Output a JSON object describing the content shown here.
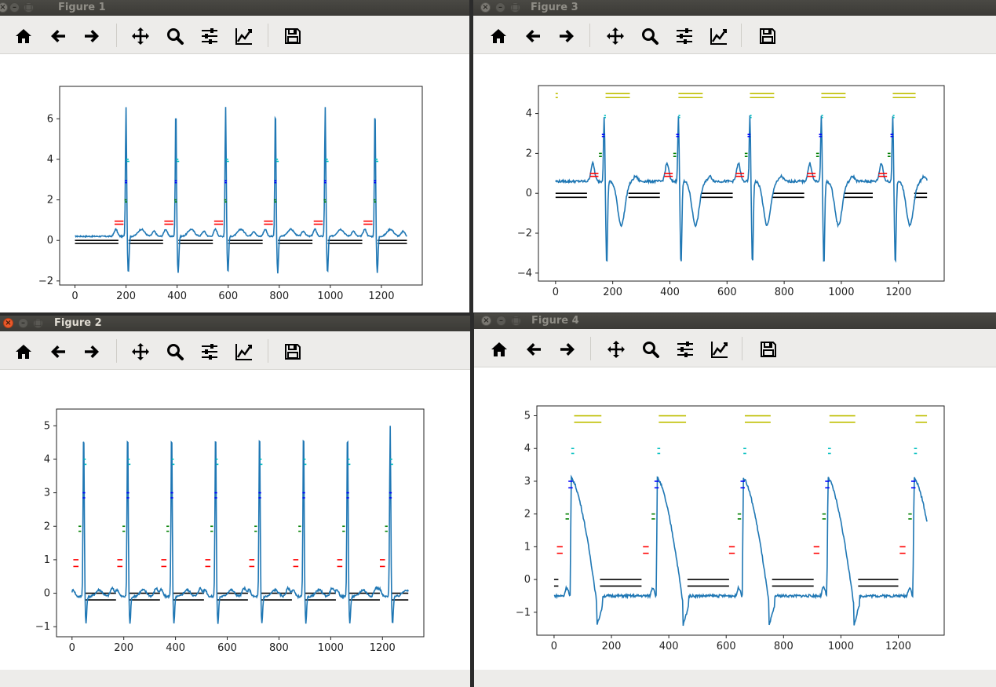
{
  "toolbar_icons": [
    "home-icon",
    "back-arrow-icon",
    "forward-arrow-icon",
    "pan-icon",
    "zoom-icon",
    "subplots-icon",
    "edit-axes-icon",
    "save-icon"
  ],
  "windows": [
    {
      "title": "Figure 1",
      "chart_data": {
        "type": "line",
        "xlim": [
          -60,
          1360
        ],
        "ylim": [
          -2.2,
          7.6
        ],
        "xticks": [
          0,
          200,
          400,
          600,
          800,
          1000,
          1200
        ],
        "yticks": [
          -2,
          0,
          2,
          4,
          6
        ],
        "beats": [
          200,
          395,
          590,
          785,
          980,
          1175
        ],
        "ecg": {
          "base": 0.2,
          "p": 0.35,
          "r": 6.6,
          "s": -1.6,
          "t": 0.35,
          "noise": 0.03
        },
        "markers": [
          {
            "color": "#00bfbf",
            "y": [
              4.0,
              3.9
            ],
            "dx": [
              0,
              3
            ],
            "w": 10
          },
          {
            "color": "#0000ff",
            "y": [
              2.95,
              2.85
            ],
            "dx": [
              -4,
              -4
            ],
            "w": 8
          },
          {
            "color": "#008000",
            "y": [
              2.0,
              1.9
            ],
            "dx": [
              -6,
              -4
            ],
            "w": 8
          },
          {
            "color": "#ff0000",
            "y": [
              0.95,
              0.8
            ],
            "dx": [
              -45,
              -45
            ],
            "w": 35
          }
        ],
        "black": {
          "y": [
            0.0,
            -0.15
          ],
          "ranges": [
            [
              0,
              170
            ],
            [
              210,
              345
            ],
            [
              405,
              540
            ],
            [
              600,
              735
            ],
            [
              795,
              930
            ],
            [
              990,
              1125
            ],
            [
              1185,
              1300
            ]
          ]
        },
        "yellow": null
      }
    },
    {
      "title": "Figure 2",
      "chart_data": {
        "type": "line",
        "xlim": [
          -60,
          1360
        ],
        "ylim": [
          -1.3,
          5.5
        ],
        "xticks": [
          0,
          200,
          400,
          600,
          800,
          1000,
          1200
        ],
        "yticks": [
          -1,
          0,
          1,
          2,
          3,
          4,
          5
        ],
        "beats": [
          45,
          215,
          385,
          555,
          725,
          895,
          1065,
          1230
        ],
        "ecg": {
          "base": -0.1,
          "p": 0.2,
          "r": 5.0,
          "s": -0.9,
          "t": 0.2,
          "noise": 0.03
        },
        "markers": [
          {
            "color": "#00bfbf",
            "y": [
              4.0,
              3.85
            ],
            "dx": [
              0,
              3
            ],
            "w": 8
          },
          {
            "color": "#0000ff",
            "y": [
              3.0,
              2.85
            ],
            "dx": [
              -4,
              -4
            ],
            "w": 10
          },
          {
            "color": "#008000",
            "y": [
              2.0,
              1.85
            ],
            "dx": [
              -20,
              -20
            ],
            "w": 10
          },
          {
            "color": "#ff0000",
            "y": [
              1.0,
              0.8
            ],
            "dx": [
              -40,
              -40
            ],
            "w": 20
          }
        ],
        "black": {
          "y": [
            0.0,
            -0.2
          ],
          "ranges": [
            [
              50,
              170
            ],
            [
              220,
              340
            ],
            [
              390,
              510
            ],
            [
              560,
              680
            ],
            [
              730,
              850
            ],
            [
              900,
              1020
            ],
            [
              1070,
              1190
            ],
            [
              1235,
              1300
            ]
          ]
        },
        "yellow": null
      }
    },
    {
      "title": "Figure 3",
      "chart_data": {
        "type": "line",
        "xlim": [
          -60,
          1360
        ],
        "ylim": [
          -4.4,
          5.4
        ],
        "xticks": [
          0,
          200,
          400,
          600,
          800,
          1000,
          1200
        ],
        "yticks": [
          -4,
          -2,
          0,
          2,
          4
        ],
        "beats": [
          170,
          430,
          680,
          930,
          1180
        ],
        "ecg": {
          "base": 0.6,
          "p": 0.9,
          "r": 3.9,
          "s": -3.6,
          "t": -2.2,
          "noise": 0.06
        },
        "markers": [
          {
            "color": "#00bfbf",
            "y": [
              3.9,
              3.8
            ],
            "dx": [
              0,
              0
            ],
            "w": 6
          },
          {
            "color": "#0000ff",
            "y": [
              2.95,
              2.85
            ],
            "dx": [
              -8,
              -8
            ],
            "w": 10
          },
          {
            "color": "#008000",
            "y": [
              2.0,
              1.85
            ],
            "dx": [
              -18,
              -18
            ],
            "w": 10
          },
          {
            "color": "#ff0000",
            "y": [
              1.0,
              0.85
            ],
            "dx": [
              -50,
              -50
            ],
            "w": 30
          }
        ],
        "black": {
          "y": [
            0.0,
            -0.2
          ],
          "ranges": [
            [
              0,
              110
            ],
            [
              255,
              365
            ],
            [
              510,
              620
            ],
            [
              760,
              870
            ],
            [
              1010,
              1110
            ],
            [
              1255,
              1300
            ]
          ]
        },
        "yellow": {
          "y": [
            5.0,
            4.8
          ],
          "ranges": [
            [
              0,
              8
            ],
            [
              175,
              260
            ],
            [
              430,
              515
            ],
            [
              680,
              765
            ],
            [
              930,
              1015
            ],
            [
              1180,
              1260
            ]
          ]
        }
      }
    },
    {
      "title": "Figure 4",
      "chart_data": {
        "type": "line",
        "xlim": [
          -60,
          1360
        ],
        "ylim": [
          -1.7,
          5.3
        ],
        "xticks": [
          0,
          200,
          400,
          600,
          800,
          1000,
          1200
        ],
        "yticks": [
          -1,
          0,
          1,
          2,
          3,
          4,
          5
        ],
        "beats": [
          60,
          360,
          660,
          955,
          1255
        ],
        "ecg": {
          "base": -0.5,
          "p": -0.4,
          "r": 3.1,
          "s": -1.4,
          "t": -0.8,
          "noise": 0.04,
          "shape": "ap"
        },
        "markers": [
          {
            "color": "#00bfbf",
            "y": [
              4.0,
              3.85
            ],
            "dx": [
              0,
              0
            ],
            "w": 10
          },
          {
            "color": "#0000ff",
            "y": [
              3.0,
              2.8
            ],
            "dx": [
              -10,
              -10
            ],
            "w": 15
          },
          {
            "color": "#008000",
            "y": [
              2.0,
              1.85
            ],
            "dx": [
              -20,
              -20
            ],
            "w": 12
          },
          {
            "color": "#ff0000",
            "y": [
              1.0,
              0.8
            ],
            "dx": [
              -50,
              -50
            ],
            "w": 20
          }
        ],
        "black": {
          "y": [
            0.0,
            -0.2
          ],
          "ranges": [
            [
              0,
              15
            ],
            [
              160,
              305
            ],
            [
              465,
              610
            ],
            [
              760,
              905
            ],
            [
              1060,
              1200
            ]
          ]
        },
        "yellow": {
          "y": [
            5.0,
            4.8
          ],
          "ranges": [
            [
              70,
              165
            ],
            [
              365,
              460
            ],
            [
              665,
              755
            ],
            [
              960,
              1050
            ],
            [
              1260,
              1300
            ]
          ]
        }
      }
    }
  ]
}
